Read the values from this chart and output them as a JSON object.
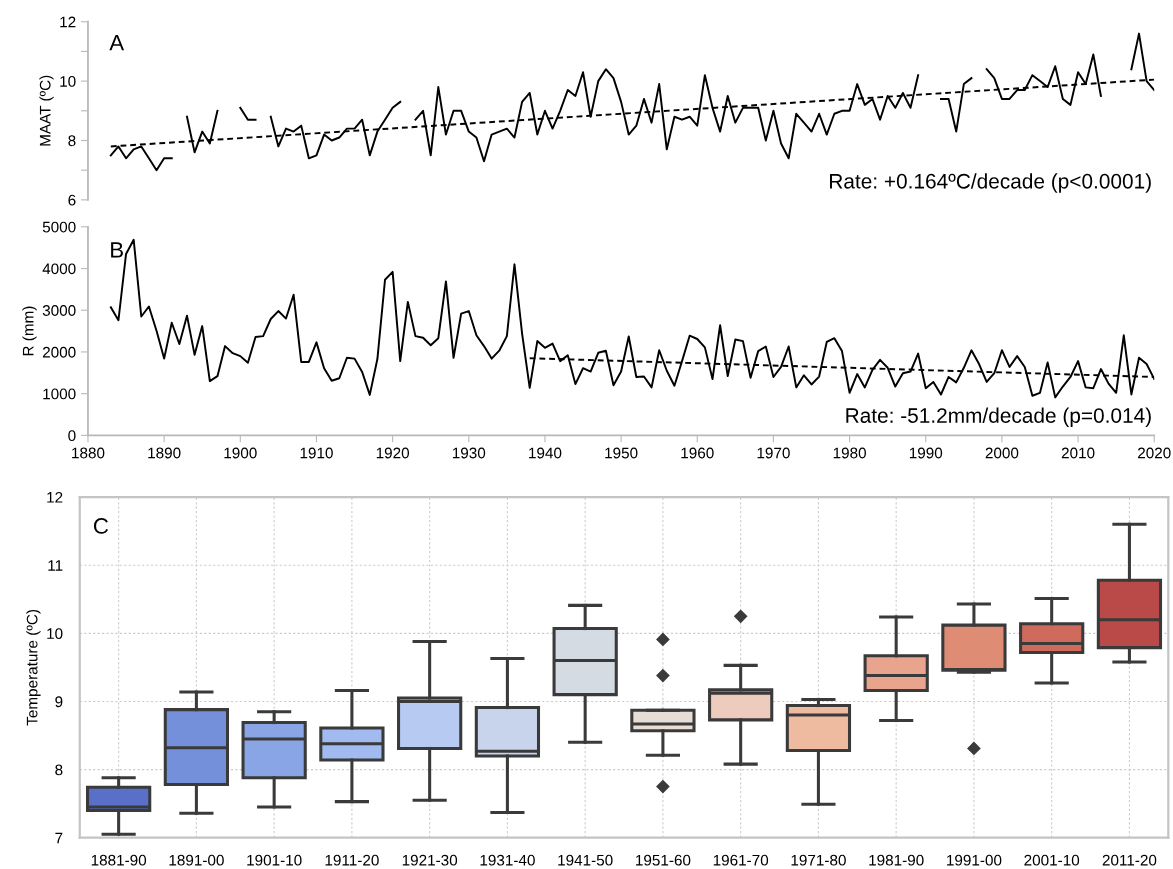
{
  "chart_data": [
    {
      "type": "line",
      "ylabel": "MAAT (ºC)",
      "xlim": [
        1880,
        2020
      ],
      "ylim": [
        6,
        12
      ],
      "yticks": [
        6,
        {
          "value": 7,
          "label": null
        },
        8,
        {
          "value": 9,
          "label": null
        },
        10,
        {
          "value": 11,
          "label": null
        },
        12
      ],
      "tick_labels": "y",
      "grid": false,
      "legend": false,
      "annotations": [
        "A",
        "Rate: +0.164ºC/decade (p<0.0001)"
      ],
      "series": [
        {
          "color": "#000000",
          "line_style": "solid",
          "x": [
            1883,
            1884,
            1885,
            1886,
            1887,
            1888,
            1889,
            1890,
            1891,
            1892,
            1893,
            1894,
            1895,
            1896,
            1897,
            1898,
            1899,
            1900,
            1901,
            1902,
            1903,
            1904,
            1905,
            1906,
            1907,
            1908,
            1909,
            1910,
            1911,
            1912,
            1913,
            1914,
            1915,
            1916,
            1917,
            1918,
            1919,
            1920,
            1921,
            1922,
            1923,
            1924,
            1925,
            1926,
            1927,
            1928,
            1929,
            1930,
            1931,
            1932,
            1933,
            1934,
            1935,
            1936,
            1937,
            1938,
            1939,
            1940,
            1941,
            1942,
            1943,
            1944,
            1945,
            1946,
            1947,
            1948,
            1949,
            1950,
            1951,
            1952,
            1953,
            1954,
            1955,
            1956,
            1957,
            1958,
            1959,
            1960,
            1961,
            1962,
            1963,
            1964,
            1965,
            1966,
            1967,
            1968,
            1969,
            1970,
            1971,
            1972,
            1973,
            1974,
            1975,
            1976,
            1977,
            1978,
            1979,
            1980,
            1981,
            1982,
            1983,
            1984,
            1985,
            1986,
            1987,
            1988,
            1989,
            1990,
            1991,
            1992,
            1993,
            1994,
            1995,
            1996,
            1997,
            1998,
            1999,
            2000,
            2001,
            2002,
            2003,
            2004,
            2005,
            2006,
            2007,
            2008,
            2009,
            2010,
            2011,
            2012,
            2013,
            2014,
            2015,
            2016,
            2017,
            2018,
            2019,
            2020
          ],
          "values": [
            7.5,
            7.8,
            7.4,
            7.7,
            7.8,
            7.4,
            7.0,
            7.4,
            7.4,
            null,
            8.8,
            7.6,
            8.3,
            7.9,
            9.0,
            null,
            null,
            9.1,
            8.7,
            8.7,
            null,
            8.8,
            7.8,
            8.4,
            8.3,
            8.5,
            7.4,
            7.5,
            8.2,
            8.0,
            8.1,
            8.4,
            8.4,
            8.7,
            7.5,
            8.3,
            8.7,
            9.1,
            9.3,
            null,
            8.7,
            9.0,
            7.5,
            9.8,
            8.2,
            9.0,
            9.0,
            8.3,
            8.1,
            7.3,
            8.2,
            8.3,
            8.4,
            8.1,
            9.3,
            9.6,
            8.2,
            9.0,
            8.4,
            9.0,
            9.7,
            9.5,
            10.3,
            8.8,
            10.0,
            10.4,
            10.1,
            9.3,
            8.2,
            8.5,
            9.4,
            8.6,
            9.9,
            7.7,
            8.8,
            8.7,
            8.8,
            8.5,
            10.2,
            9.1,
            8.3,
            9.5,
            8.6,
            9.1,
            9.1,
            9.1,
            8.0,
            9.0,
            7.9,
            7.4,
            8.9,
            8.6,
            8.3,
            8.9,
            8.2,
            8.9,
            9.0,
            9.0,
            9.9,
            9.2,
            9.4,
            8.7,
            9.5,
            9.1,
            9.6,
            9.1,
            10.2,
            null,
            null,
            9.4,
            9.4,
            8.3,
            9.9,
            10.1,
            null,
            10.4,
            10.1,
            9.4,
            9.4,
            9.7,
            9.7,
            10.2,
            10.0,
            9.8,
            10.5,
            9.4,
            9.2,
            10.3,
            9.9,
            10.9,
            9.5,
            null,
            null,
            null,
            10.4,
            11.6,
            10.0,
            9.7
          ]
        },
        {
          "color": "#000000",
          "line_style": "dashed",
          "x": [
            1883,
            2020
          ],
          "values": [
            7.8,
            10.05
          ]
        }
      ]
    },
    {
      "type": "line",
      "ylabel": "R (mm)",
      "xlim": [
        1880,
        2020
      ],
      "xticks": [
        1880,
        1890,
        1900,
        1910,
        1920,
        1930,
        1940,
        1950,
        1960,
        1970,
        1980,
        1990,
        2000,
        2010,
        2020
      ],
      "ylim": [
        0,
        5000
      ],
      "yticks": [
        0,
        1000,
        2000,
        3000,
        4000,
        5000
      ],
      "grid": false,
      "legend": false,
      "annotations": [
        "B",
        "Rate: -51.2mm/decade (p=0.014)"
      ],
      "series": [
        {
          "color": "#000000",
          "line_style": "solid",
          "x": [
            1883,
            1884,
            1885,
            1886,
            1887,
            1888,
            1889,
            1890,
            1891,
            1892,
            1893,
            1894,
            1895,
            1896,
            1897,
            1898,
            1899,
            1900,
            1901,
            1902,
            1903,
            1904,
            1905,
            1906,
            1907,
            1908,
            1909,
            1910,
            1911,
            1912,
            1913,
            1914,
            1915,
            1916,
            1917,
            1918,
            1919,
            1920,
            1921,
            1922,
            1923,
            1924,
            1925,
            1926,
            1927,
            1928,
            1929,
            1930,
            1931,
            1932,
            1933,
            1934,
            1935,
            1936,
            1937,
            1938,
            1939,
            1940,
            1941,
            1942,
            1943,
            1944,
            1945,
            1946,
            1947,
            1948,
            1949,
            1950,
            1951,
            1952,
            1953,
            1954,
            1955,
            1956,
            1957,
            1958,
            1959,
            1960,
            1961,
            1962,
            1963,
            1964,
            1965,
            1966,
            1967,
            1968,
            1969,
            1970,
            1971,
            1972,
            1973,
            1974,
            1975,
            1976,
            1977,
            1978,
            1979,
            1980,
            1981,
            1982,
            1983,
            1984,
            1985,
            1986,
            1987,
            1988,
            1989,
            1990,
            1991,
            1992,
            1993,
            1994,
            1995,
            1996,
            1997,
            1998,
            1999,
            2000,
            2001,
            2002,
            2003,
            2004,
            2005,
            2006,
            2007,
            2008,
            2009,
            2010,
            2011,
            2012,
            2013,
            2014,
            2015,
            2016,
            2017,
            2018,
            2019,
            2020
          ],
          "values": [
            3070,
            2760,
            4350,
            4690,
            2850,
            3090,
            2510,
            1840,
            2700,
            2190,
            2870,
            1930,
            2620,
            1300,
            1420,
            2140,
            1970,
            1900,
            1740,
            2360,
            2380,
            2790,
            2980,
            2800,
            3370,
            1760,
            1760,
            2230,
            1610,
            1310,
            1370,
            1860,
            1840,
            1520,
            970,
            1830,
            3730,
            3920,
            1780,
            3200,
            2380,
            2340,
            2160,
            2330,
            3690,
            1860,
            2920,
            2980,
            2400,
            2140,
            1840,
            2030,
            2380,
            4100,
            2440,
            1140,
            2260,
            2100,
            2200,
            1780,
            1920,
            1230,
            1610,
            1530,
            1980,
            2030,
            1200,
            1530,
            2370,
            1400,
            1410,
            1150,
            2040,
            1550,
            1190,
            1780,
            2390,
            2310,
            2110,
            1350,
            2640,
            1420,
            2300,
            2260,
            1380,
            2020,
            2130,
            1400,
            1640,
            2130,
            1150,
            1440,
            1220,
            1410,
            2240,
            2330,
            2020,
            1020,
            1470,
            1150,
            1570,
            1810,
            1620,
            1170,
            1490,
            1530,
            1960,
            1130,
            1280,
            980,
            1400,
            1270,
            1620,
            2040,
            1710,
            1280,
            1490,
            2040,
            1640,
            1900,
            1640,
            950,
            1020,
            1750,
            910,
            1170,
            1400,
            1780,
            1150,
            1130,
            1590,
            1240,
            1020,
            2400,
            980,
            1860,
            1710,
            1350
          ]
        },
        {
          "color": "#000000",
          "line_style": "dashed",
          "x": [
            1938,
            2020
          ],
          "values": [
            1850,
            1400
          ]
        }
      ]
    },
    {
      "type": "box",
      "ylabel": "Temperature (ºC)",
      "ylim": [
        7,
        12
      ],
      "yticks": [
        7,
        8,
        9,
        10,
        11,
        12
      ],
      "grid": true,
      "legend": false,
      "annotations": [
        "C"
      ],
      "categories": [
        "1881-90",
        "1891-00",
        "1901-10",
        "1911-20",
        "1921-30",
        "1931-40",
        "1941-50",
        "1951-60",
        "1961-70",
        "1971-80",
        "1981-90",
        "1991-00",
        "2001-10",
        "2011-20"
      ],
      "colors": [
        "#5a70c8",
        "#7590db",
        "#8aa5e6",
        "#a1baf0",
        "#b7cbf2",
        "#c8d4ec",
        "#d5dbe3",
        "#e8ddd5",
        "#edcbbd",
        "#eebaa0",
        "#e8a48c",
        "#de8c74",
        "#cf6b5c",
        "#b94a47"
      ],
      "boxes": [
        {
          "low": 7.05,
          "q1": 7.4,
          "median": 7.45,
          "q3": 7.74,
          "high": 7.88
        },
        {
          "low": 7.36,
          "q1": 7.78,
          "median": 8.32,
          "q3": 8.88,
          "high": 9.14
        },
        {
          "low": 7.45,
          "q1": 7.88,
          "median": 8.45,
          "q3": 8.69,
          "high": 8.85
        },
        {
          "low": 7.53,
          "q1": 8.14,
          "median": 8.38,
          "q3": 8.61,
          "high": 9.16
        },
        {
          "low": 7.55,
          "q1": 8.31,
          "median": 9.0,
          "q3": 9.05,
          "high": 9.88
        },
        {
          "low": 7.37,
          "q1": 8.2,
          "median": 8.27,
          "q3": 8.91,
          "high": 9.63
        },
        {
          "low": 8.4,
          "q1": 9.1,
          "median": 9.6,
          "q3": 10.07,
          "high": 10.41
        },
        {
          "low": 8.21,
          "q1": 8.57,
          "median": 8.67,
          "q3": 8.87,
          "high": 8.87,
          "outliers": [
            9.91,
            9.38,
            7.75
          ]
        },
        {
          "low": 8.08,
          "q1": 8.73,
          "median": 9.12,
          "q3": 9.17,
          "high": 9.53,
          "outliers": [
            10.25
          ]
        },
        {
          "low": 7.49,
          "q1": 8.28,
          "median": 8.8,
          "q3": 8.94,
          "high": 9.03
        },
        {
          "low": 8.72,
          "q1": 9.16,
          "median": 9.38,
          "q3": 9.67,
          "high": 10.24
        },
        {
          "low": 9.43,
          "q1": 9.46,
          "median": 9.47,
          "q3": 10.12,
          "high": 10.43,
          "outliers": [
            8.31
          ]
        },
        {
          "low": 9.27,
          "q1": 9.72,
          "median": 9.85,
          "q3": 10.14,
          "high": 10.51
        },
        {
          "low": 9.58,
          "q1": 9.79,
          "median": 10.2,
          "q3": 10.78,
          "high": 11.6
        }
      ]
    }
  ]
}
